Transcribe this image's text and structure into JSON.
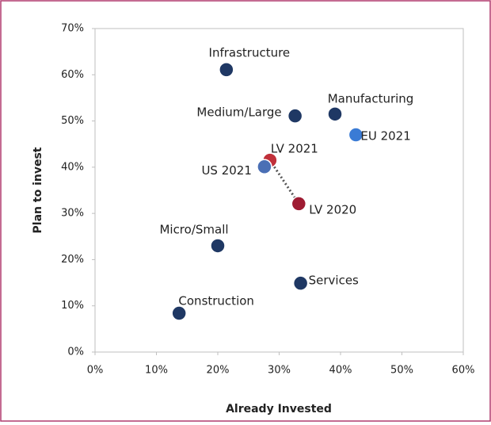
{
  "chart_data": {
    "type": "scatter",
    "xlabel": "Already Invested",
    "ylabel": "Plan to invest",
    "categories": [
      "Infrastructure",
      "Medium/Large",
      "Manufacturing",
      "EU 2021",
      "LV 2021",
      "US 2021",
      "LV 2020",
      "Micro/Small",
      "Services",
      "Construction"
    ],
    "x": [
      21.4,
      32.6,
      39.1,
      42.5,
      28.5,
      27.6,
      33.2,
      20.0,
      33.5,
      13.7
    ],
    "values": [
      61.1,
      51.1,
      51.5,
      47.0,
      41.5,
      40.1,
      32.1,
      23.0,
      14.9,
      8.4
    ],
    "colors": [
      "#1f3864",
      "#1f3864",
      "#1f3864",
      "#3a7bd5",
      "#c0303a",
      "#4a6fb5",
      "#9e1b32",
      "#1f3864",
      "#1f3864",
      "#1f3864"
    ],
    "xlim": [
      0,
      60
    ],
    "xticks": [
      {
        "value": 0,
        "label": "0%"
      },
      {
        "value": 10,
        "label": "10%"
      },
      {
        "value": 20,
        "label": "20%"
      },
      {
        "value": 30,
        "label": "30%"
      },
      {
        "value": 40,
        "label": "40%"
      },
      {
        "value": 50,
        "label": "50%"
      },
      {
        "value": 60,
        "label": "60%"
      }
    ],
    "ylim": [
      0,
      70
    ],
    "yticks": [
      {
        "value": 0,
        "label": "0%"
      },
      {
        "value": 10,
        "label": "10%"
      },
      {
        "value": 20,
        "label": "20%"
      },
      {
        "value": 30,
        "label": "30%"
      },
      {
        "value": 40,
        "label": "40%"
      },
      {
        "value": 50,
        "label": "50%"
      },
      {
        "value": 60,
        "label": "60%"
      },
      {
        "value": 70,
        "label": "70%"
      }
    ],
    "grid": false
  }
}
